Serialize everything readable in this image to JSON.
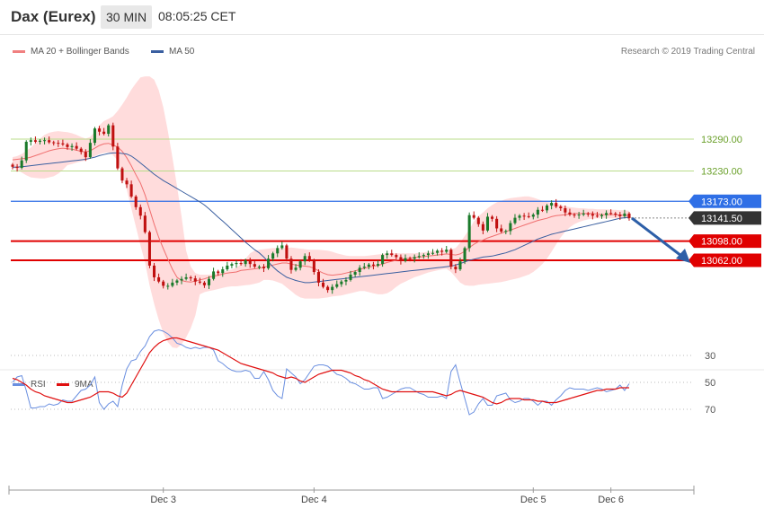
{
  "header": {
    "symbol": "Dax (Eurex)",
    "timeframe": "30 MIN",
    "time": "08:05:25 CET"
  },
  "legend": {
    "ma20": "MA 20 + Bollinger Bands",
    "ma50": "MA 50",
    "rsi": "RSI",
    "ma9": "9MA",
    "credit": "Research © 2019 Trading Central"
  },
  "colors": {
    "up": "#1a7a2a",
    "down": "#c01010",
    "band": "#ffd6d6",
    "ma20": "#f07070",
    "ma50": "#3a5fa0",
    "rsi": "#6a8fe0",
    "ma9": "#e01010",
    "green_level": "#b8dc8a",
    "blue_level": "#2f6fe6",
    "red_level": "#e00000"
  },
  "chart_data": [
    {
      "type": "candlestick",
      "x_labels": [
        "Dec 3",
        "Dec 4",
        "Dec 5",
        "Dec 6"
      ],
      "ylim": [
        13010,
        13390
      ],
      "levels": [
        {
          "label": "13290.00",
          "value": 13290,
          "kind": "resistance-green"
        },
        {
          "label": "13230.00",
          "value": 13230,
          "kind": "resistance-green"
        },
        {
          "label": "13173.00",
          "value": 13173,
          "kind": "pivot-blue"
        },
        {
          "label": "13141.50",
          "value": 13141.5,
          "kind": "last-price"
        },
        {
          "label": "13098.00",
          "value": 13098,
          "kind": "support-red"
        },
        {
          "label": "13062.00",
          "value": 13062,
          "kind": "support-red"
        }
      ],
      "close": [
        13238,
        13236,
        13250,
        13285,
        13288,
        13285,
        13287,
        13288,
        13284,
        13283,
        13282,
        13280,
        13275,
        13277,
        13272,
        13266,
        13256,
        13283,
        13310,
        13304,
        13300,
        13316,
        13276,
        13235,
        13212,
        13205,
        13182,
        13162,
        13146,
        13115,
        13052,
        13030,
        13022,
        13014,
        13014,
        13020,
        13024,
        13027,
        13030,
        13028,
        13022,
        13020,
        13015,
        13027,
        13041,
        13038,
        13045,
        13052,
        13055,
        13057,
        13055,
        13062,
        13055,
        13050,
        13050,
        13047,
        13065,
        13075,
        13085,
        13090,
        13065,
        13044,
        13048,
        13060,
        13070,
        13062,
        13040,
        13020,
        13012,
        13006,
        13012,
        13017,
        13022,
        13025,
        13035,
        13040,
        13048,
        13050,
        13054,
        13052,
        13055,
        13072,
        13075,
        13072,
        13068,
        13061,
        13066,
        13065,
        13068,
        13070,
        13072,
        13075,
        13076,
        13080,
        13078,
        13082,
        13050,
        13045,
        13060,
        13085,
        13147,
        13142,
        13130,
        13118,
        13144,
        13140,
        13122,
        13116,
        13117,
        13132,
        13142,
        13146,
        13145,
        13144,
        13148,
        13157,
        13156,
        13165,
        13170,
        13163,
        13160,
        13152,
        13148,
        13147,
        13148,
        13150,
        13149,
        13146,
        13145,
        13147,
        13151,
        13150,
        13148,
        13145,
        13150,
        13141.5
      ],
      "ma20": [
        13251,
        13252,
        13253,
        13254,
        13256,
        13259,
        13262,
        13265,
        13268,
        13270,
        13272,
        13273,
        13272,
        13271,
        13269,
        13267,
        13266,
        13268,
        13273,
        13278,
        13281,
        13282,
        13279,
        13275,
        13267,
        13255,
        13240,
        13223,
        13207,
        13185,
        13158,
        13130,
        13105,
        13084,
        13064,
        13045,
        13030,
        13024,
        13022,
        13021,
        13023,
        13025,
        13027,
        13030,
        13032,
        13034,
        13036,
        13038,
        13039,
        13040,
        13043,
        13044,
        13045,
        13046,
        13047,
        13049,
        13051,
        13053,
        13055,
        13057,
        13057,
        13055,
        13053,
        13052,
        13051,
        13050,
        13047,
        13042,
        13038,
        13035,
        13034,
        13035,
        13036,
        13038,
        13040,
        13042,
        13045,
        13047,
        13049,
        13051,
        13052,
        13055,
        13058,
        13060,
        13062,
        13064,
        13065,
        13066,
        13067,
        13068,
        13069,
        13070,
        13071,
        13072,
        13073,
        13074,
        13073,
        13072,
        13074,
        13079,
        13086,
        13092,
        13097,
        13100,
        13104,
        13107,
        13110,
        13113,
        13116,
        13119,
        13122,
        13125,
        13128,
        13131,
        13134,
        13137,
        13139,
        13141,
        13144,
        13146,
        13147,
        13148,
        13149,
        13150,
        13150,
        13150,
        13150,
        13150,
        13149,
        13148,
        13148,
        13148,
        13148,
        13147,
        13147,
        13146
      ],
      "bb_upper": [
        13256,
        13258,
        13262,
        13268,
        13274,
        13283,
        13291,
        13298,
        13302,
        13304,
        13305,
        13304,
        13303,
        13301,
        13298,
        13294,
        13291,
        13294,
        13304,
        13316,
        13324,
        13328,
        13333,
        13343,
        13355,
        13368,
        13383,
        13395,
        13406,
        13408,
        13408,
        13402,
        13382,
        13350,
        13305,
        13255,
        13202,
        13144,
        13080,
        13050,
        13038,
        13035,
        13035,
        13035,
        13036,
        13038,
        13040,
        13042,
        13045,
        13048,
        13055,
        13065,
        13075,
        13080,
        13082,
        13083,
        13084,
        13085,
        13085,
        13085,
        13085,
        13086,
        13085,
        13084,
        13083,
        13082,
        13082,
        13082,
        13081,
        13080,
        13078,
        13075,
        13073,
        13071,
        13070,
        13070,
        13070,
        13070,
        13071,
        13072,
        13073,
        13074,
        13075,
        13075,
        13075,
        13075,
        13075,
        13075,
        13075,
        13076,
        13077,
        13078,
        13079,
        13080,
        13081,
        13082,
        13083,
        13085,
        13095,
        13108,
        13120,
        13135,
        13145,
        13152,
        13160,
        13166,
        13171,
        13174,
        13177,
        13179,
        13180,
        13181,
        13182,
        13182,
        13180,
        13177,
        13174,
        13172,
        13170,
        13168,
        13166,
        13164,
        13162,
        13161,
        13160,
        13160,
        13159,
        13159,
        13158,
        13158,
        13158,
        13157,
        13157,
        13156,
        13156,
        13155
      ],
      "bb_lower": [
        13236,
        13232,
        13227,
        13222,
        13218,
        13217,
        13216,
        13216,
        13218,
        13220,
        13225,
        13232,
        13241,
        13243,
        13246,
        13248,
        13250,
        13253,
        13258,
        13262,
        13264,
        13265,
        13260,
        13250,
        13225,
        13195,
        13160,
        13125,
        13090,
        13058,
        13015,
        12980,
        12950,
        12925,
        12908,
        12898,
        12897,
        12904,
        12917,
        12934,
        12958,
        12998,
        13002,
        13004,
        13006,
        13008,
        13010,
        13012,
        13013,
        13013,
        13014,
        13015,
        13016,
        13018,
        13020,
        13025,
        13025,
        13024,
        13021,
        13018,
        13011,
        13004,
        12997,
        12992,
        12990,
        12990,
        12990,
        12990,
        12991,
        12992,
        12994,
        12995,
        12996,
        12998,
        13000,
        13002,
        13004,
        13004,
        13002,
        13000,
        12998,
        12998,
        13000,
        13005,
        13012,
        13018,
        13022,
        13026,
        13030,
        13033,
        13036,
        13039,
        13041,
        13043,
        13045,
        13046,
        13040,
        13030,
        13020,
        13015,
        13014,
        13014,
        13016,
        13017,
        13018,
        13019,
        13020,
        13021,
        13023,
        13025,
        13027,
        13029,
        13032,
        13035,
        13040,
        13047,
        13055,
        13065,
        13078,
        13092,
        13105,
        13116,
        13124,
        13130,
        13134,
        13137,
        13139,
        13140,
        13141,
        13141,
        13141,
        13141,
        13141,
        13141,
        13141,
        13141
      ],
      "ma50": [
        13237,
        13237.5,
        13238,
        13239,
        13240,
        13241,
        13242,
        13243,
        13244,
        13245,
        13246,
        13247,
        13248,
        13249,
        13250,
        13251,
        13252,
        13254,
        13256,
        13259,
        13261,
        13263,
        13264,
        13264,
        13263,
        13262,
        13258,
        13252,
        13245,
        13238,
        13231,
        13224,
        13218,
        13212,
        13207,
        13202,
        13197,
        13192,
        13187,
        13182,
        13177,
        13172,
        13166,
        13159,
        13151,
        13143,
        13136,
        13128,
        13120,
        13112,
        13104,
        13096,
        13089,
        13082,
        13076,
        13068,
        13059,
        13050,
        13042,
        13036,
        13030,
        13027,
        13024,
        13022,
        13020,
        13020,
        13021,
        13022,
        13023,
        13024,
        13025,
        13026,
        13027,
        13028,
        13029,
        13030,
        13031,
        13032,
        13033,
        13034,
        13035,
        13036,
        13037,
        13038,
        13039,
        13040,
        13041,
        13042,
        13043,
        13044,
        13045,
        13046,
        13047,
        13048,
        13049,
        13050,
        13051,
        13053,
        13056,
        13059,
        13062,
        13064,
        13066,
        13068,
        13069,
        13070,
        13072,
        13074,
        13076,
        13079,
        13082,
        13086,
        13090,
        13094,
        13098,
        13102,
        13105,
        13108,
        13111,
        13113,
        13115,
        13117,
        13119,
        13121,
        13123,
        13125,
        13127,
        13129,
        13131,
        13133,
        13135,
        13137,
        13139,
        13141,
        13142,
        13143
      ]
    },
    {
      "type": "line",
      "ylim": [
        10,
        82
      ],
      "ticks": [
        30,
        50,
        70
      ],
      "series": [
        {
          "name": "RSI",
          "values": [
            50,
            46,
            45,
            56,
            69,
            69,
            68,
            68,
            66,
            67,
            66,
            63,
            64,
            64,
            60,
            56,
            55,
            52,
            46,
            65,
            70,
            66,
            64,
            68,
            52,
            40,
            34,
            33,
            27,
            23,
            16,
            12,
            11,
            12,
            14,
            17,
            21,
            22,
            24,
            25,
            24,
            25,
            24,
            24,
            26,
            34,
            36,
            39,
            41,
            42,
            42,
            41,
            42,
            47,
            47,
            42,
            48,
            56,
            60,
            62,
            40,
            43,
            46,
            51,
            48,
            43,
            38,
            37,
            37,
            38,
            41,
            44,
            45,
            47,
            50,
            51,
            53,
            55,
            55,
            54,
            54,
            62,
            61,
            59,
            57,
            55,
            54,
            54,
            56,
            58,
            59,
            61,
            61,
            61,
            60,
            62,
            42,
            37,
            50,
            62,
            74,
            72,
            66,
            62,
            67,
            67,
            60,
            59,
            58,
            63,
            65,
            64,
            62,
            62,
            64,
            67,
            64,
            64,
            67,
            63,
            60,
            56,
            54,
            55,
            55,
            55,
            56,
            55,
            54,
            55,
            57,
            56,
            55,
            52,
            56,
            51
          ]
        },
        {
          "name": "9MA",
          "values": [
            47,
            48,
            50,
            52,
            55,
            57,
            58,
            60,
            61,
            62,
            63,
            64,
            65,
            65,
            64,
            63,
            62,
            61,
            59,
            57,
            57,
            57,
            58,
            60,
            61,
            58,
            52,
            46,
            40,
            34,
            28,
            24,
            21,
            19,
            18,
            17,
            17,
            18,
            19,
            20,
            21,
            22,
            23,
            24,
            25,
            26,
            28,
            30,
            32,
            34,
            36,
            37,
            38,
            39,
            40,
            41,
            42,
            43,
            45,
            46,
            47,
            46,
            47,
            49,
            50,
            48,
            46,
            44,
            43,
            42,
            41,
            41,
            41,
            42,
            43,
            45,
            46,
            48,
            49,
            51,
            53,
            55,
            56,
            57,
            57,
            57,
            57,
            57,
            57,
            57,
            57,
            57,
            57,
            58,
            59,
            60,
            59,
            57,
            56,
            57,
            58,
            59,
            60,
            61,
            63,
            65,
            66,
            65,
            63,
            62,
            62,
            62,
            63,
            63,
            63,
            64,
            64,
            65,
            65,
            65,
            64,
            63,
            62,
            61,
            60,
            59,
            58,
            57,
            56,
            56,
            55,
            55,
            55,
            54,
            54,
            54
          ]
        }
      ]
    }
  ]
}
